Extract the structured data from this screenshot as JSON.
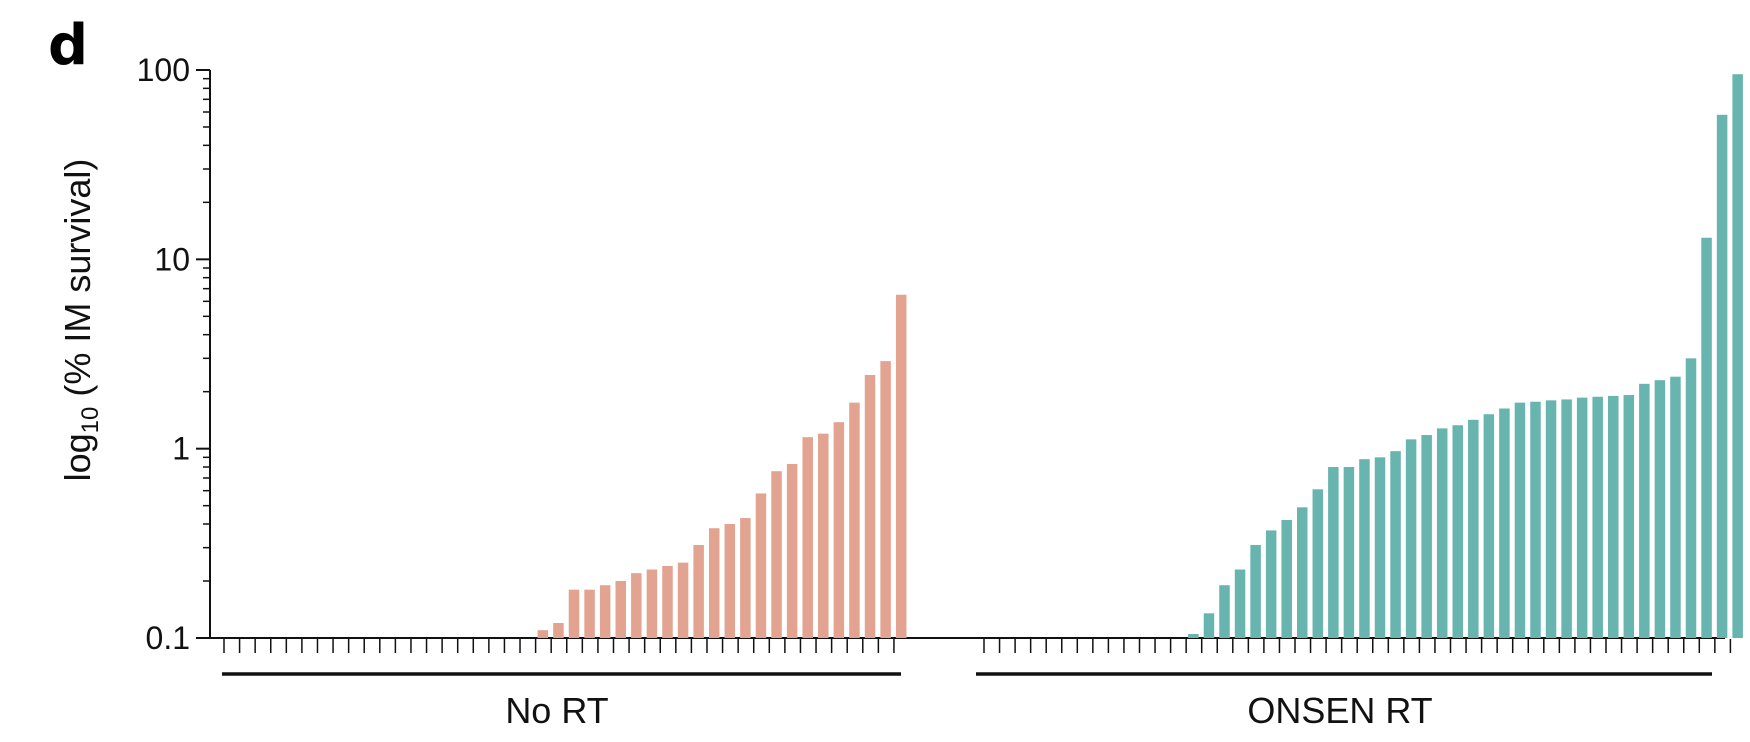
{
  "panel_letter": "d",
  "colors": {
    "no_rt": "#e2a391",
    "onsen_rt": "#68b4af",
    "axis": "#111111"
  },
  "chart_data": {
    "type": "bar",
    "yscale": "log",
    "ylim": [
      0.1,
      100
    ],
    "ylabel": "log10 (% IM survival)",
    "ylabel_main": "log",
    "ylabel_sub": "10",
    "ylabel_rest": " (% IM survival)",
    "yticks": [
      "0.1",
      "1",
      "10",
      "100"
    ],
    "grid": false,
    "series": [
      {
        "name": "No RT",
        "values": [
          0.1,
          0.1,
          0.1,
          0.1,
          0.1,
          0.1,
          0.1,
          0.1,
          0.1,
          0.1,
          0.1,
          0.1,
          0.1,
          0.1,
          0.1,
          0.1,
          0.1,
          0.1,
          0.1,
          0.1,
          0.11,
          0.12,
          0.18,
          0.18,
          0.19,
          0.2,
          0.22,
          0.23,
          0.24,
          0.25,
          0.31,
          0.38,
          0.4,
          0.43,
          0.58,
          0.76,
          0.83,
          1.15,
          1.2,
          1.38,
          1.75,
          2.45,
          2.9,
          6.5
        ]
      },
      {
        "name": "ONSEN RT",
        "values": [
          0.1,
          0.1,
          0.1,
          0.1,
          0.1,
          0.1,
          0.1,
          0.1,
          0.1,
          0.1,
          0.1,
          0.1,
          0.1,
          0.105,
          0.135,
          0.19,
          0.23,
          0.31,
          0.37,
          0.42,
          0.49,
          0.61,
          0.8,
          0.8,
          0.88,
          0.9,
          0.97,
          1.12,
          1.18,
          1.28,
          1.33,
          1.42,
          1.52,
          1.63,
          1.75,
          1.77,
          1.8,
          1.82,
          1.86,
          1.88,
          1.9,
          1.92,
          2.2,
          2.3,
          2.4,
          3.0,
          13.0,
          58.0,
          95.0
        ]
      }
    ]
  }
}
